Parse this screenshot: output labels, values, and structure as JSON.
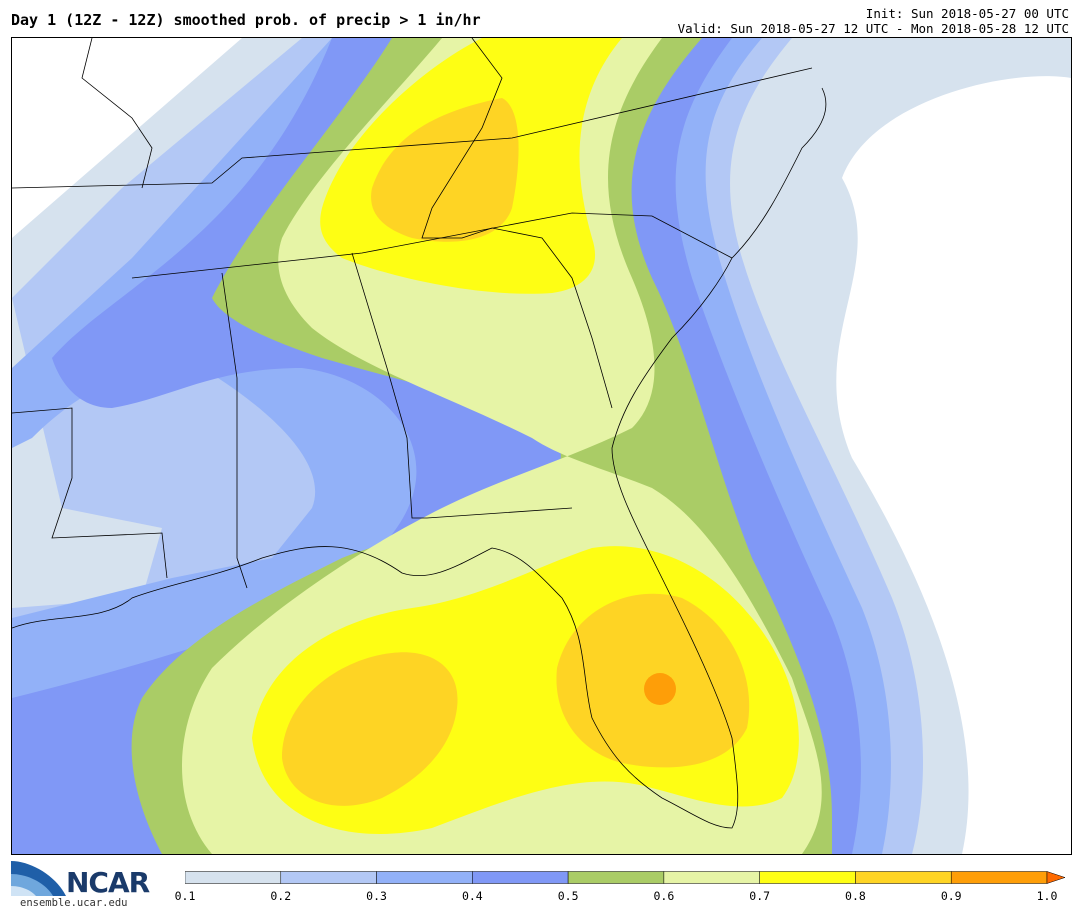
{
  "title": "Day 1 (12Z - 12Z) smoothed prob. of precip > 1 in/hr",
  "init": "Init: Sun 2018-05-27 00 UTC",
  "valid": "Valid: Sun 2018-05-27 12 UTC - Mon 2018-05-28 12 UTC",
  "logo": {
    "brand": "NCAR",
    "url": "ensemble.ucar.edu"
  },
  "colorbar": {
    "ticks": [
      "0.1",
      "0.2",
      "0.3",
      "0.4",
      "0.5",
      "0.6",
      "0.7",
      "0.8",
      "0.9",
      "1.0"
    ],
    "colors": [
      "#d6e2ee",
      "#b3c8f5",
      "#92b1f8",
      "#8098f6",
      "#aacc66",
      "#e6f4a6",
      "#fefe14",
      "#fed424",
      "#fe9e08"
    ]
  },
  "map_colors": {
    "water": "#ffffff",
    "p01": "#d6e2ee",
    "p02": "#b3c8f5",
    "p03": "#92b1f8",
    "p04": "#8098f6",
    "p05": "#aacc66",
    "p06": "#e6f4a6",
    "p07": "#fefe14",
    "p08": "#fed424",
    "p09": "#fe9e08"
  }
}
